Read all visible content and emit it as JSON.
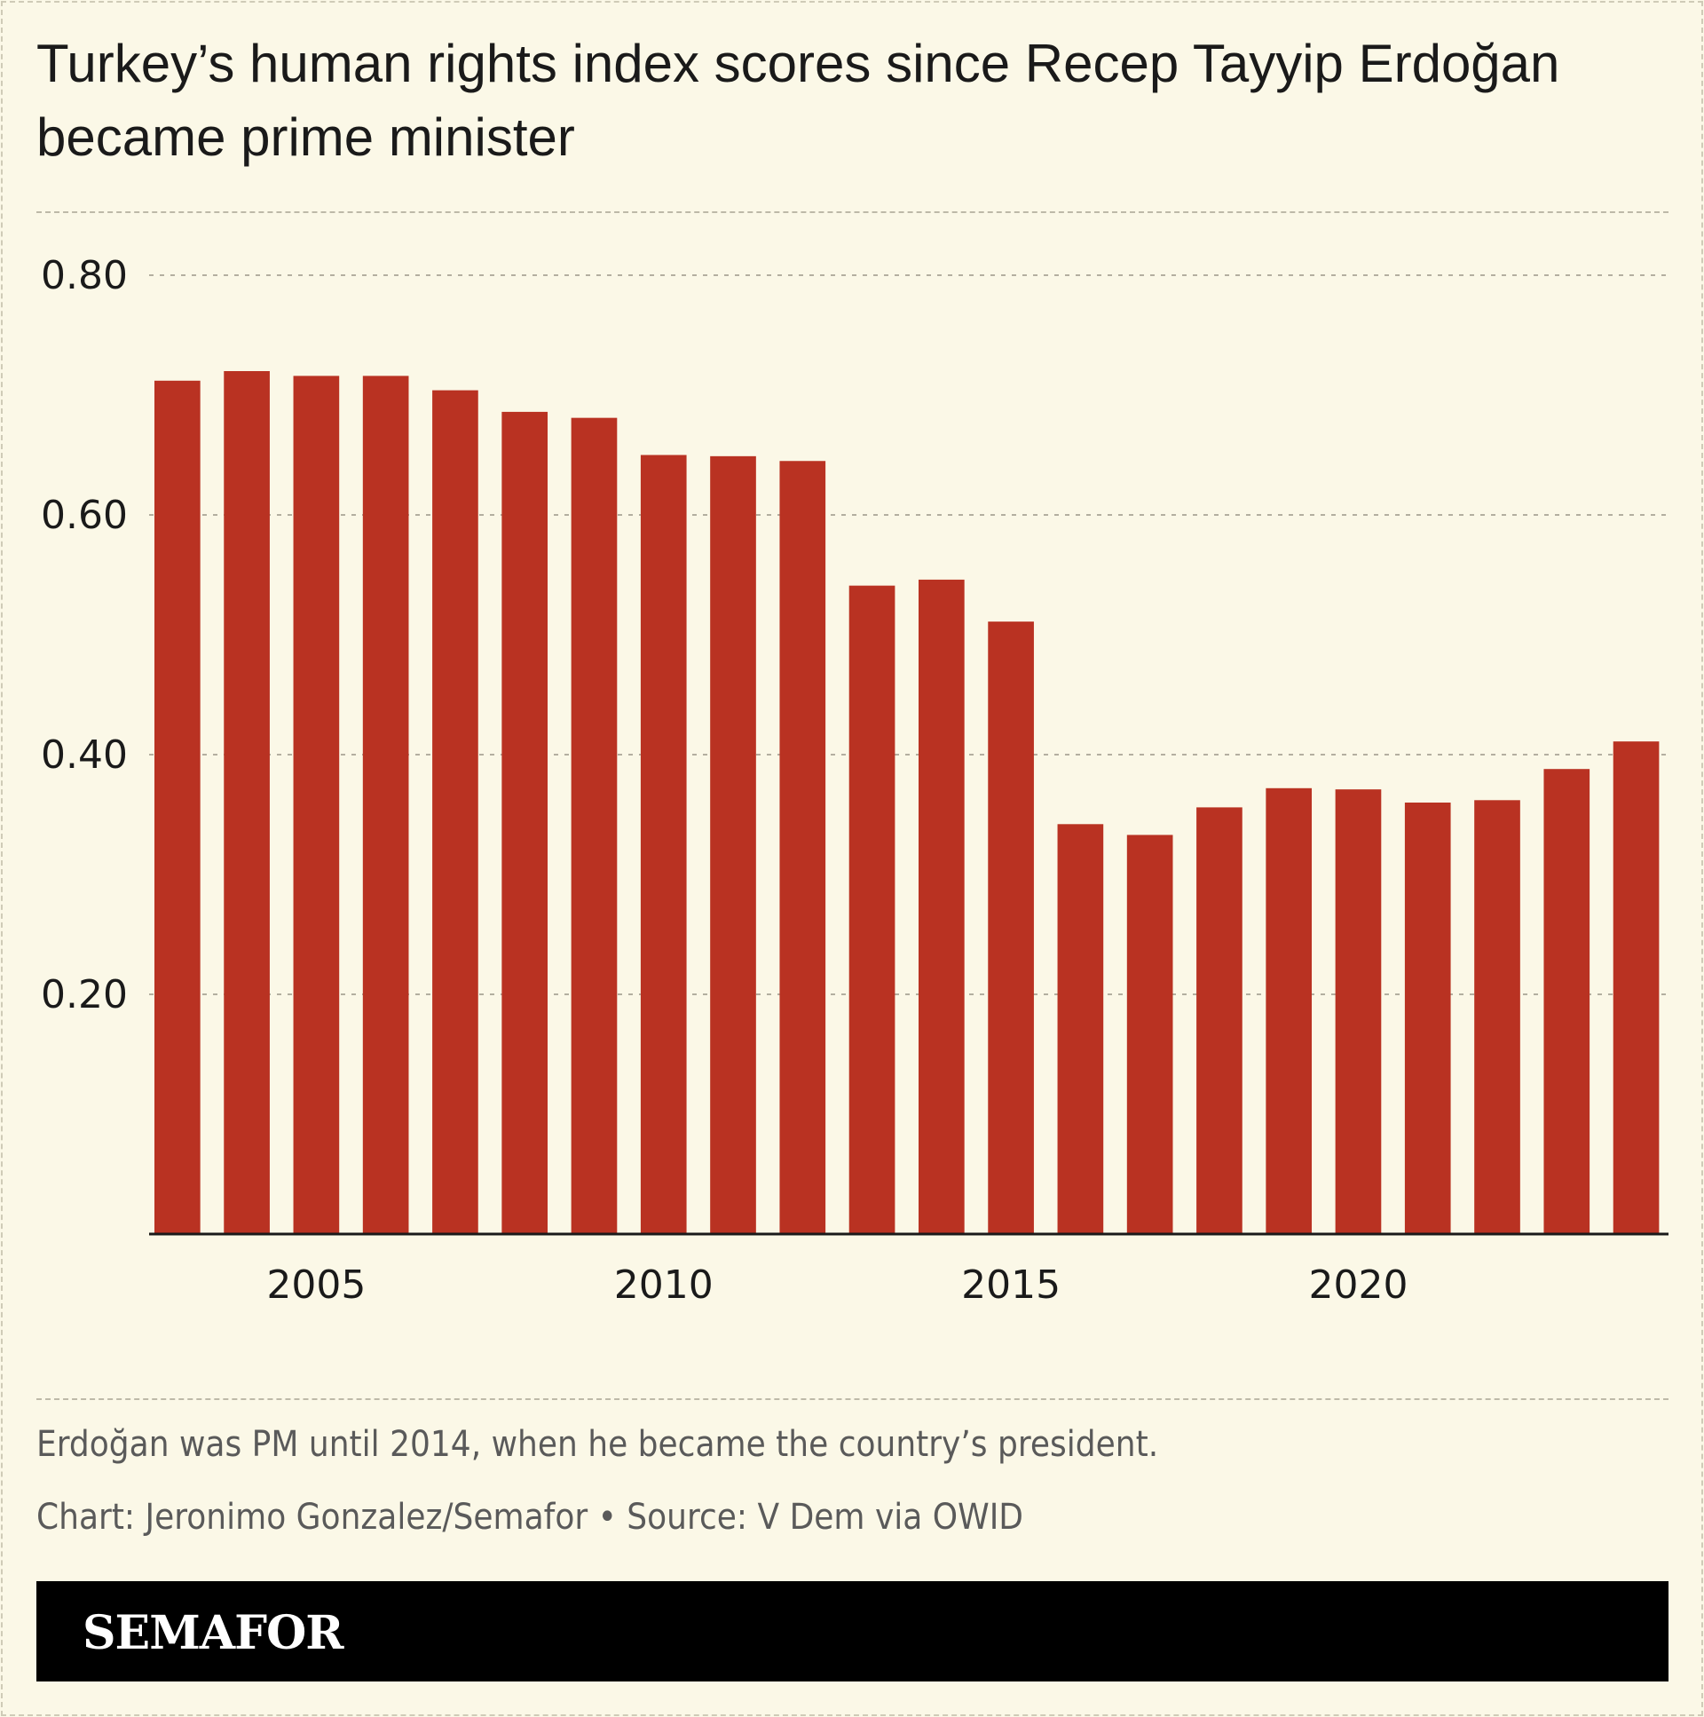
{
  "header": {
    "title": "Turkey’s human rights index scores since Recep Tayyip Erdoğan became prime minister"
  },
  "chart_data": {
    "type": "bar",
    "x": [
      2003,
      2004,
      2005,
      2006,
      2007,
      2008,
      2009,
      2010,
      2011,
      2012,
      2013,
      2014,
      2015,
      2016,
      2017,
      2018,
      2019,
      2020,
      2021,
      2022,
      2023,
      2024
    ],
    "values": [
      0.712,
      0.72,
      0.716,
      0.716,
      0.704,
      0.686,
      0.681,
      0.65,
      0.649,
      0.645,
      0.541,
      0.546,
      0.511,
      0.342,
      0.333,
      0.356,
      0.372,
      0.371,
      0.36,
      0.362,
      0.388,
      0.411
    ],
    "ylim": [
      0,
      0.8
    ],
    "yticks": [
      0.2,
      0.4,
      0.6,
      0.8
    ],
    "ytick_labels": [
      "0.20",
      "0.40",
      "0.60",
      "0.80"
    ],
    "xticks": [
      2005,
      2010,
      2015,
      2020
    ],
    "xtick_labels": [
      "2005",
      "2010",
      "2015",
      "2020"
    ],
    "grid": true,
    "bar_color": "#b93222"
  },
  "notes": {
    "caption": "Erdoğan was PM until 2014, when he became the country’s president.",
    "credit": "Chart: Jeronimo Gonzalez/Semafor • Source: V Dem via OWID"
  },
  "footer": {
    "logo": "SEMAFOR"
  },
  "colors": {
    "background": "#fbf8e7",
    "bar": "#b93222",
    "text": "#1a1a1a",
    "muted_text": "#5a5a5a",
    "footer_bg": "#000000"
  }
}
